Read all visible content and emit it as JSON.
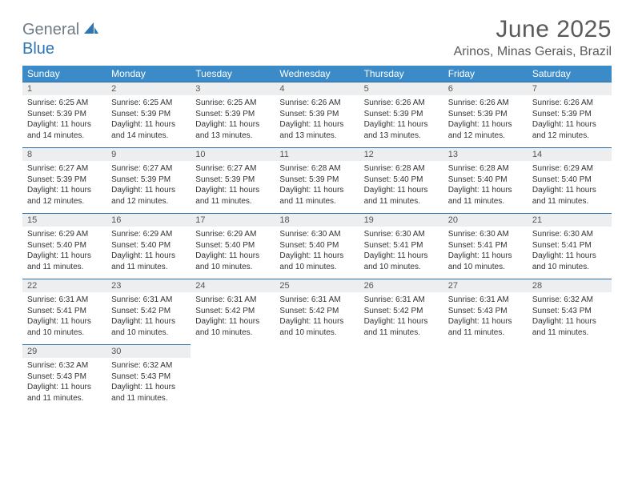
{
  "logo": {
    "part1": "General",
    "part2": "Blue"
  },
  "title": "June 2025",
  "location": "Arinos, Minas Gerais, Brazil",
  "colors": {
    "header_bg": "#3b8bc8",
    "header_text": "#ffffff",
    "daynum_bg": "#eceeef",
    "border": "#2e6ca3",
    "logo_gray": "#6f7b85",
    "logo_blue": "#2e75b6",
    "title_color": "#5a5a5a"
  },
  "dow": [
    "Sunday",
    "Monday",
    "Tuesday",
    "Wednesday",
    "Thursday",
    "Friday",
    "Saturday"
  ],
  "weeks": [
    [
      {
        "n": "1",
        "sunrise": "Sunrise: 6:25 AM",
        "sunset": "Sunset: 5:39 PM",
        "day1": "Daylight: 11 hours",
        "day2": "and 14 minutes."
      },
      {
        "n": "2",
        "sunrise": "Sunrise: 6:25 AM",
        "sunset": "Sunset: 5:39 PM",
        "day1": "Daylight: 11 hours",
        "day2": "and 14 minutes."
      },
      {
        "n": "3",
        "sunrise": "Sunrise: 6:25 AM",
        "sunset": "Sunset: 5:39 PM",
        "day1": "Daylight: 11 hours",
        "day2": "and 13 minutes."
      },
      {
        "n": "4",
        "sunrise": "Sunrise: 6:26 AM",
        "sunset": "Sunset: 5:39 PM",
        "day1": "Daylight: 11 hours",
        "day2": "and 13 minutes."
      },
      {
        "n": "5",
        "sunrise": "Sunrise: 6:26 AM",
        "sunset": "Sunset: 5:39 PM",
        "day1": "Daylight: 11 hours",
        "day2": "and 13 minutes."
      },
      {
        "n": "6",
        "sunrise": "Sunrise: 6:26 AM",
        "sunset": "Sunset: 5:39 PM",
        "day1": "Daylight: 11 hours",
        "day2": "and 12 minutes."
      },
      {
        "n": "7",
        "sunrise": "Sunrise: 6:26 AM",
        "sunset": "Sunset: 5:39 PM",
        "day1": "Daylight: 11 hours",
        "day2": "and 12 minutes."
      }
    ],
    [
      {
        "n": "8",
        "sunrise": "Sunrise: 6:27 AM",
        "sunset": "Sunset: 5:39 PM",
        "day1": "Daylight: 11 hours",
        "day2": "and 12 minutes."
      },
      {
        "n": "9",
        "sunrise": "Sunrise: 6:27 AM",
        "sunset": "Sunset: 5:39 PM",
        "day1": "Daylight: 11 hours",
        "day2": "and 12 minutes."
      },
      {
        "n": "10",
        "sunrise": "Sunrise: 6:27 AM",
        "sunset": "Sunset: 5:39 PM",
        "day1": "Daylight: 11 hours",
        "day2": "and 11 minutes."
      },
      {
        "n": "11",
        "sunrise": "Sunrise: 6:28 AM",
        "sunset": "Sunset: 5:39 PM",
        "day1": "Daylight: 11 hours",
        "day2": "and 11 minutes."
      },
      {
        "n": "12",
        "sunrise": "Sunrise: 6:28 AM",
        "sunset": "Sunset: 5:40 PM",
        "day1": "Daylight: 11 hours",
        "day2": "and 11 minutes."
      },
      {
        "n": "13",
        "sunrise": "Sunrise: 6:28 AM",
        "sunset": "Sunset: 5:40 PM",
        "day1": "Daylight: 11 hours",
        "day2": "and 11 minutes."
      },
      {
        "n": "14",
        "sunrise": "Sunrise: 6:29 AM",
        "sunset": "Sunset: 5:40 PM",
        "day1": "Daylight: 11 hours",
        "day2": "and 11 minutes."
      }
    ],
    [
      {
        "n": "15",
        "sunrise": "Sunrise: 6:29 AM",
        "sunset": "Sunset: 5:40 PM",
        "day1": "Daylight: 11 hours",
        "day2": "and 11 minutes."
      },
      {
        "n": "16",
        "sunrise": "Sunrise: 6:29 AM",
        "sunset": "Sunset: 5:40 PM",
        "day1": "Daylight: 11 hours",
        "day2": "and 11 minutes."
      },
      {
        "n": "17",
        "sunrise": "Sunrise: 6:29 AM",
        "sunset": "Sunset: 5:40 PM",
        "day1": "Daylight: 11 hours",
        "day2": "and 10 minutes."
      },
      {
        "n": "18",
        "sunrise": "Sunrise: 6:30 AM",
        "sunset": "Sunset: 5:40 PM",
        "day1": "Daylight: 11 hours",
        "day2": "and 10 minutes."
      },
      {
        "n": "19",
        "sunrise": "Sunrise: 6:30 AM",
        "sunset": "Sunset: 5:41 PM",
        "day1": "Daylight: 11 hours",
        "day2": "and 10 minutes."
      },
      {
        "n": "20",
        "sunrise": "Sunrise: 6:30 AM",
        "sunset": "Sunset: 5:41 PM",
        "day1": "Daylight: 11 hours",
        "day2": "and 10 minutes."
      },
      {
        "n": "21",
        "sunrise": "Sunrise: 6:30 AM",
        "sunset": "Sunset: 5:41 PM",
        "day1": "Daylight: 11 hours",
        "day2": "and 10 minutes."
      }
    ],
    [
      {
        "n": "22",
        "sunrise": "Sunrise: 6:31 AM",
        "sunset": "Sunset: 5:41 PM",
        "day1": "Daylight: 11 hours",
        "day2": "and 10 minutes."
      },
      {
        "n": "23",
        "sunrise": "Sunrise: 6:31 AM",
        "sunset": "Sunset: 5:42 PM",
        "day1": "Daylight: 11 hours",
        "day2": "and 10 minutes."
      },
      {
        "n": "24",
        "sunrise": "Sunrise: 6:31 AM",
        "sunset": "Sunset: 5:42 PM",
        "day1": "Daylight: 11 hours",
        "day2": "and 10 minutes."
      },
      {
        "n": "25",
        "sunrise": "Sunrise: 6:31 AM",
        "sunset": "Sunset: 5:42 PM",
        "day1": "Daylight: 11 hours",
        "day2": "and 10 minutes."
      },
      {
        "n": "26",
        "sunrise": "Sunrise: 6:31 AM",
        "sunset": "Sunset: 5:42 PM",
        "day1": "Daylight: 11 hours",
        "day2": "and 11 minutes."
      },
      {
        "n": "27",
        "sunrise": "Sunrise: 6:31 AM",
        "sunset": "Sunset: 5:43 PM",
        "day1": "Daylight: 11 hours",
        "day2": "and 11 minutes."
      },
      {
        "n": "28",
        "sunrise": "Sunrise: 6:32 AM",
        "sunset": "Sunset: 5:43 PM",
        "day1": "Daylight: 11 hours",
        "day2": "and 11 minutes."
      }
    ],
    [
      {
        "n": "29",
        "sunrise": "Sunrise: 6:32 AM",
        "sunset": "Sunset: 5:43 PM",
        "day1": "Daylight: 11 hours",
        "day2": "and 11 minutes."
      },
      {
        "n": "30",
        "sunrise": "Sunrise: 6:32 AM",
        "sunset": "Sunset: 5:43 PM",
        "day1": "Daylight: 11 hours",
        "day2": "and 11 minutes."
      },
      {
        "empty": true
      },
      {
        "empty": true
      },
      {
        "empty": true
      },
      {
        "empty": true
      },
      {
        "empty": true
      }
    ]
  ]
}
